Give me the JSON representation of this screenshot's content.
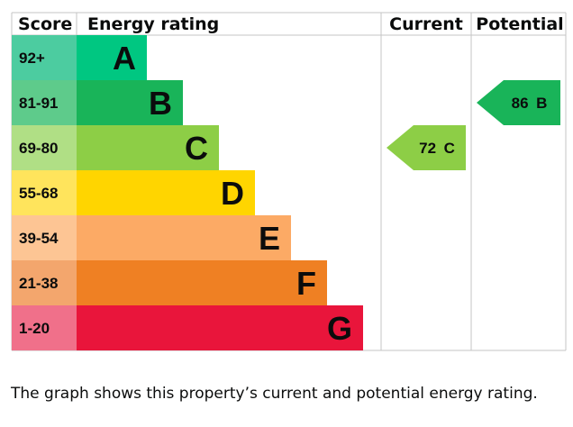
{
  "chart_data": {
    "type": "bar",
    "headers": {
      "score": "Score",
      "rating": "Energy rating",
      "current": "Current",
      "potential": "Potential"
    },
    "bands": [
      {
        "score": "92+",
        "letter": "A",
        "color": "#00c781"
      },
      {
        "score": "81-91",
        "letter": "B",
        "color": "#19b459"
      },
      {
        "score": "69-80",
        "letter": "C",
        "color": "#8dce46"
      },
      {
        "score": "55-68",
        "letter": "D",
        "color": "#ffd500"
      },
      {
        "score": "39-54",
        "letter": "E",
        "color": "#fcaa65"
      },
      {
        "score": "21-38",
        "letter": "F",
        "color": "#ef8023"
      },
      {
        "score": "1-20",
        "letter": "G",
        "color": "#e9153b"
      }
    ],
    "score_cell_colors": [
      "#4ccca0",
      "#5ecb8b",
      "#b0df85",
      "#ffe45c",
      "#fdc594",
      "#f3a66d",
      "#f0708a"
    ],
    "current": {
      "value": 72,
      "band": "C",
      "label": "72 C",
      "color": "#8dce46"
    },
    "potential": {
      "value": 86,
      "band": "B",
      "label": "86 B",
      "color": "#19b459"
    }
  },
  "caption": "The graph shows this property’s current and potential energy rating."
}
